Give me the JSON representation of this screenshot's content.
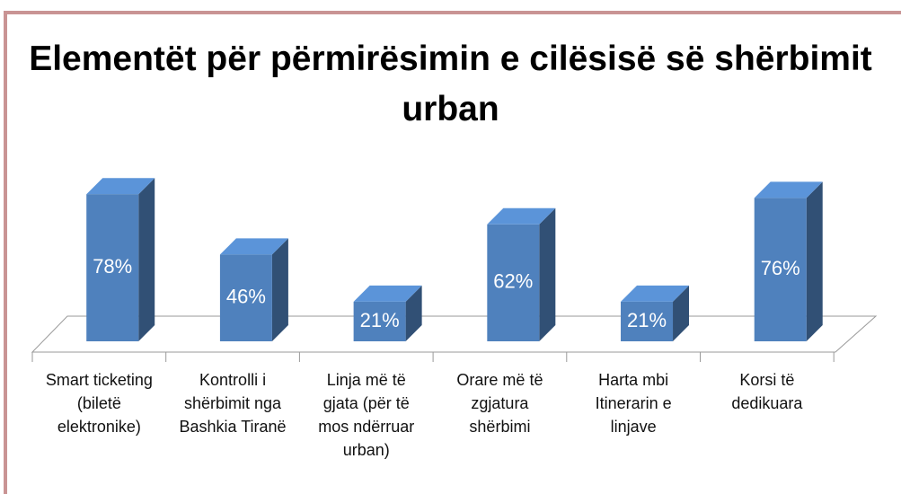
{
  "chart_data": {
    "type": "bar",
    "title": "Elementët për përmirësimin e cilësisë së shërbimit urban",
    "categories": [
      "Smart ticketing (biletë elektronike)",
      "Kontrolli i shërbimit nga Bashkia Tiranë",
      "Linja më të gjata (për të mos ndërruar urban)",
      "Orare më të zgjatura shërbimi",
      "Harta mbi Itinerarin e linjave",
      "Korsi të dedikuara"
    ],
    "values": [
      78,
      46,
      21,
      62,
      21,
      76
    ],
    "value_labels": [
      "78%",
      "46%",
      "21%",
      "62%",
      "21%",
      "76%"
    ],
    "color": "#4f81bd"
  }
}
